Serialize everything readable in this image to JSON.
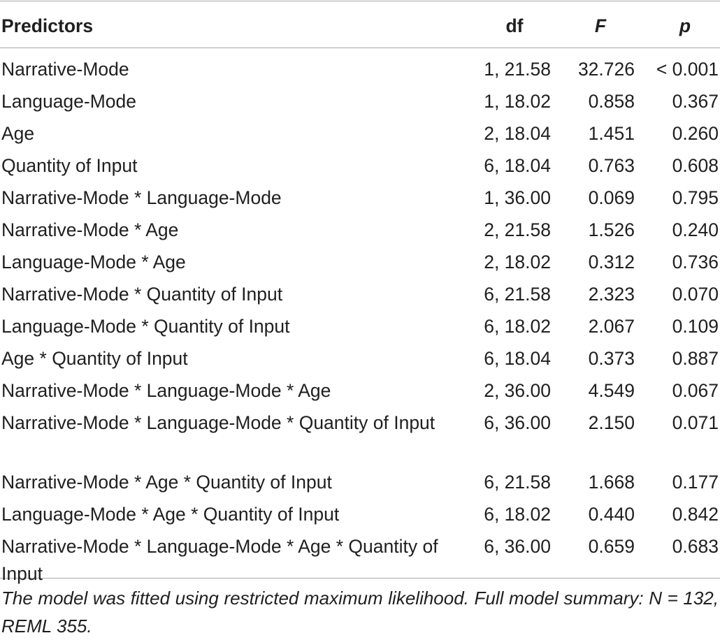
{
  "table": {
    "headers": {
      "predictors": "Predictors",
      "df": "df",
      "f": "F",
      "p": "p"
    },
    "rows": [
      {
        "predictor": "Narrative-Mode",
        "df": "1, 21.58",
        "f": "32.726",
        "p": "< 0.001"
      },
      {
        "predictor": "Language-Mode",
        "df": "1, 18.02",
        "f": "0.858",
        "p": "0.367"
      },
      {
        "predictor": "Age",
        "df": "2, 18.04",
        "f": "1.451",
        "p": "0.260"
      },
      {
        "predictor": "Quantity of Input",
        "df": "6, 18.04",
        "f": "0.763",
        "p": "0.608"
      },
      {
        "predictor": "Narrative-Mode * Language-Mode",
        "df": "1, 36.00",
        "f": "0.069",
        "p": "0.795"
      },
      {
        "predictor": "Narrative-Mode * Age",
        "df": "2, 21.58",
        "f": "1.526",
        "p": "0.240"
      },
      {
        "predictor": "Language-Mode * Age",
        "df": "2, 18.02",
        "f": "0.312",
        "p": "0.736"
      },
      {
        "predictor": "Narrative-Mode * Quantity of Input",
        "df": "6, 21.58",
        "f": "2.323",
        "p": "0.070"
      },
      {
        "predictor": "Language-Mode * Quantity of Input",
        "df": "6, 18.02",
        "f": "2.067",
        "p": "0.109"
      },
      {
        "predictor": "Age * Quantity of Input",
        "df": "6, 18.04",
        "f": "0.373",
        "p": "0.887"
      },
      {
        "predictor": "Narrative-Mode * Language-Mode * Age",
        "df": "2, 36.00",
        "f": "4.549",
        "p": "0.067"
      },
      {
        "predictor": "Narrative-Mode * Language-Mode * Quantity of Input",
        "df": "6, 36.00",
        "f": "2.150",
        "p": "0.071"
      },
      {
        "predictor": "Narrative-Mode * Age * Quantity of Input",
        "df": "6, 21.58",
        "f": "1.668",
        "p": "0.177"
      },
      {
        "predictor": "Language-Mode * Age * Quantity of Input",
        "df": "6, 18.02",
        "f": "0.440",
        "p": "0.842"
      },
      {
        "predictor": "Narrative-Mode * Language-Mode * Age * Quantity of Input",
        "df": "6, 36.00",
        "f": "0.659",
        "p": "0.683"
      }
    ]
  },
  "note": "The model was fitted using restricted maximum likelihood. Full model summary: N = 132, REML 355."
}
